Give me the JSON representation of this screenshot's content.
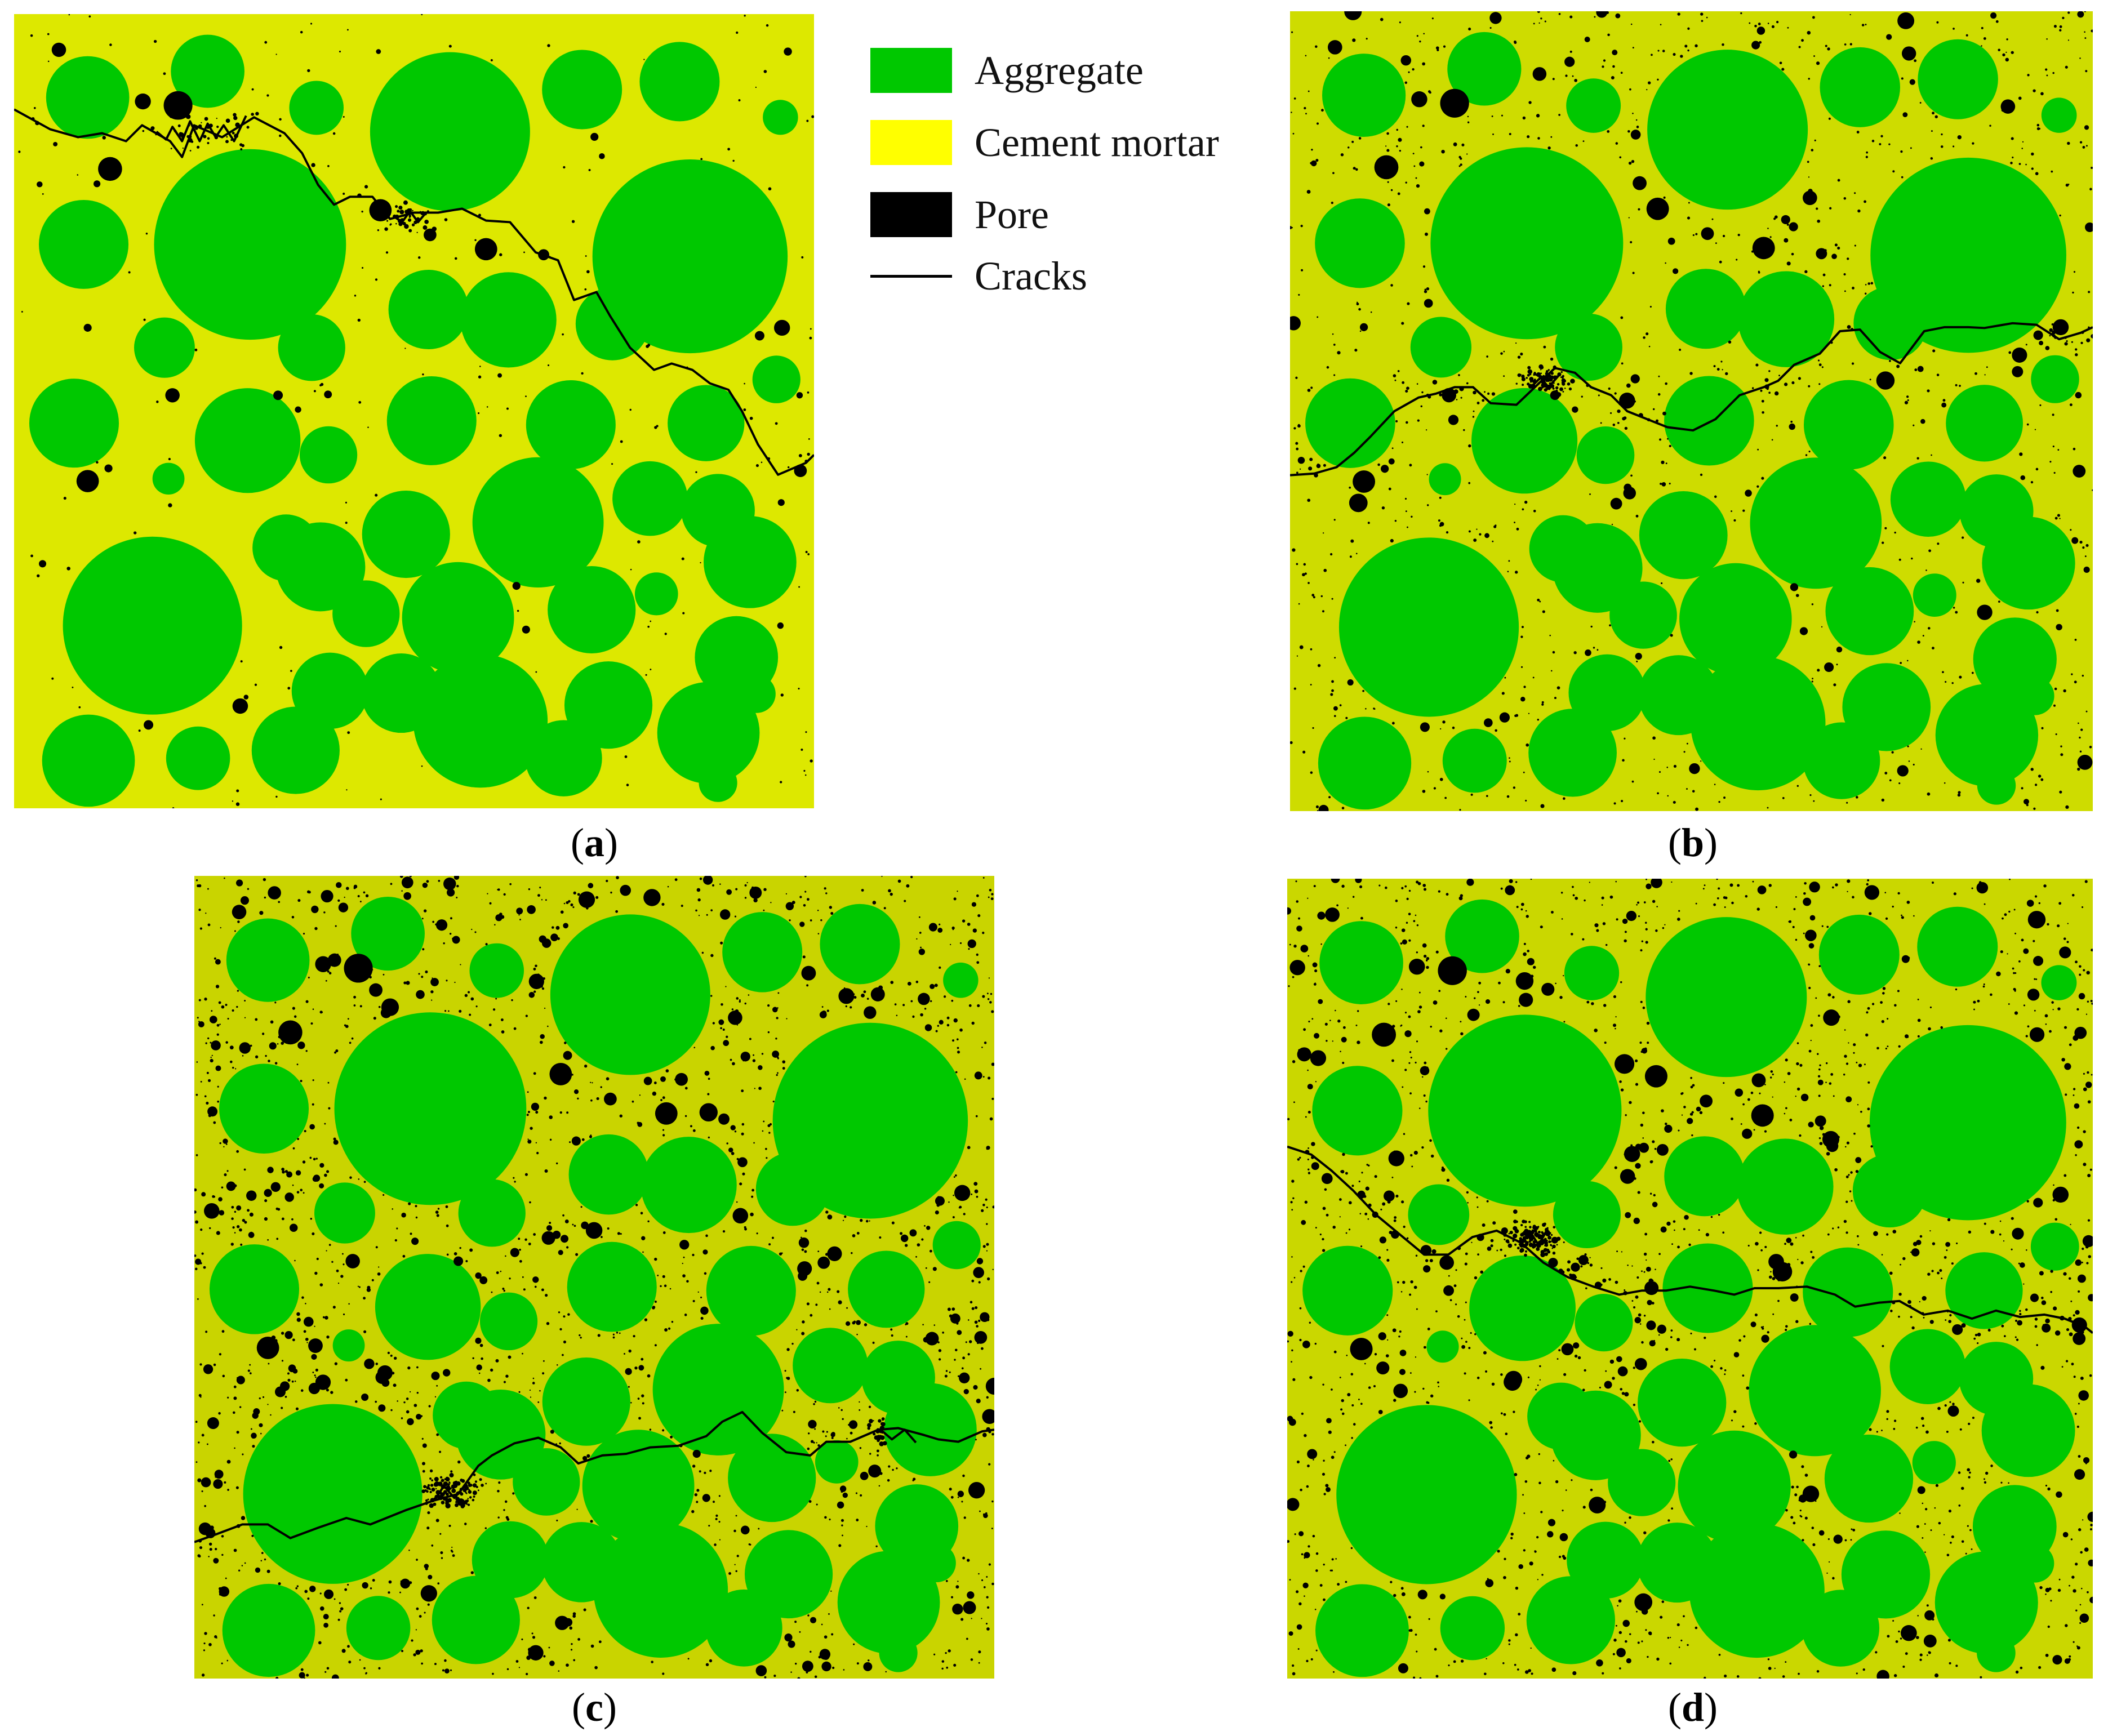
{
  "legend": {
    "items": [
      {
        "label": "Aggregate",
        "color": "#00c800",
        "kind": "swatch"
      },
      {
        "label": "Cement mortar",
        "color": "#ffff00",
        "kind": "swatch"
      },
      {
        "label": "Pore",
        "color": "#000000",
        "kind": "swatch"
      },
      {
        "label": "Cracks",
        "color": "#000000",
        "kind": "line"
      }
    ]
  },
  "panels": [
    {
      "id": "a",
      "caption_open": "(",
      "caption_letter": "a",
      "caption_close": ")",
      "mortar_color": "#dde800"
    },
    {
      "id": "b",
      "caption_open": "(",
      "caption_letter": "b",
      "caption_close": ")",
      "mortar_color": "#cedc00"
    },
    {
      "id": "c",
      "caption_open": "(",
      "caption_letter": "c",
      "caption_close": ")",
      "mortar_color": "#c9d400"
    },
    {
      "id": "d",
      "caption_open": "(",
      "caption_letter": "d",
      "caption_close": ")",
      "mortar_color": "#cad700"
    }
  ],
  "colors": {
    "aggregate": "#00c800",
    "pore": "#000000",
    "crack": "#000000"
  }
}
